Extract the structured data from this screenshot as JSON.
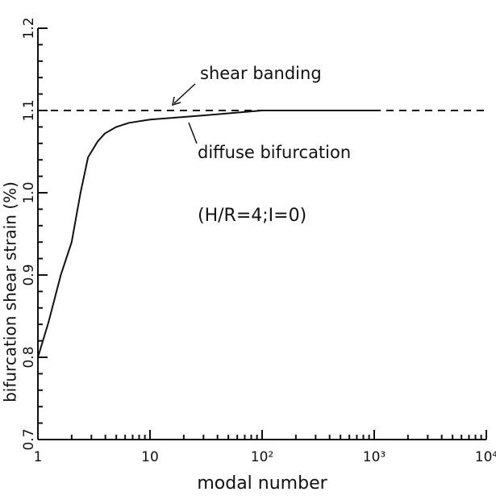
{
  "chart_data": {
    "type": "line",
    "xlabel": "modal number",
    "ylabel": "bifurcation shear strain (%)",
    "xscale": "log",
    "xlim": [
      1,
      10000
    ],
    "xticks": [
      1,
      10,
      {
        "value": 100,
        "label": "10²"
      },
      {
        "value": 1000,
        "label": "10³"
      },
      {
        "value": 10000,
        "label": "10⁴"
      }
    ],
    "ylim": [
      0.7,
      1.2
    ],
    "yticks": [
      0.7,
      0.8,
      0.9,
      {
        "value": 1,
        "label": "1.0"
      },
      1.1,
      1.2
    ],
    "grid": false,
    "annotations": [
      "(H/R=4;I=0)"
    ],
    "series": [
      {
        "name": "shear banding",
        "color": "#111111",
        "dashed": true,
        "x": [
          1,
          10000
        ],
        "values": [
          1.1,
          1.1
        ]
      },
      {
        "name": "diffuse bifurcation",
        "color": "#111111",
        "dashed": false,
        "x": [
          1,
          1.24,
          1.6,
          2,
          2.4,
          2.8,
          3.4,
          3.95,
          5,
          6.5,
          10,
          30,
          100,
          300,
          1000
        ],
        "values": [
          0.8,
          0.842,
          0.9,
          0.94,
          1.0,
          1.043,
          1.062,
          1.072,
          1.08,
          1.085,
          1.089,
          1.094,
          1.1,
          1.1,
          1.1
        ]
      }
    ]
  }
}
